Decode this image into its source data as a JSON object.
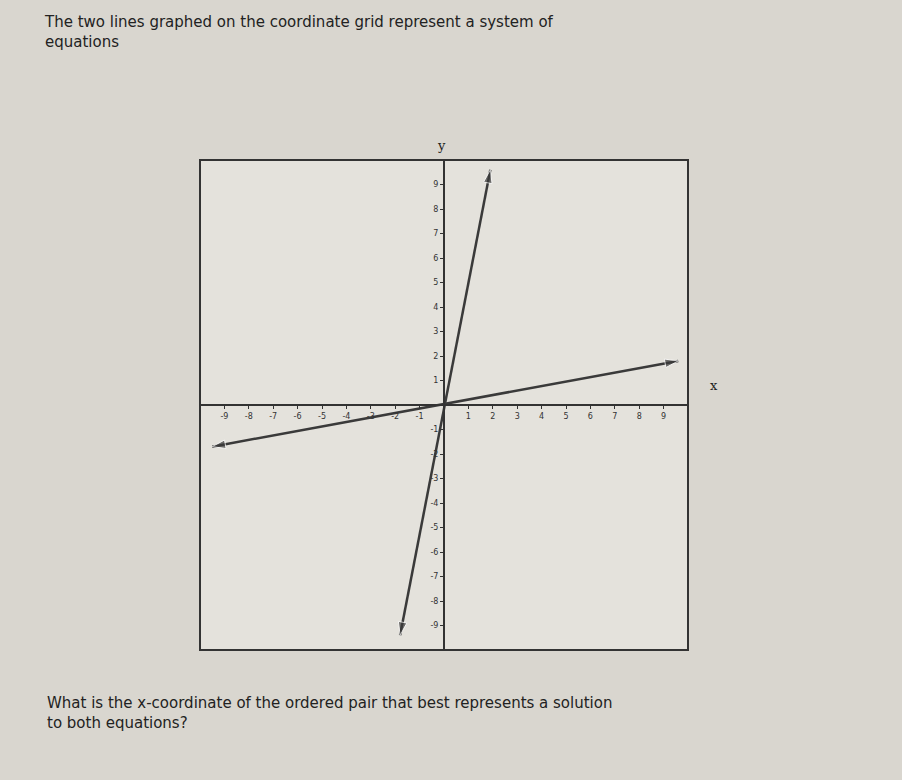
{
  "chart_data": {
    "type": "line",
    "title": "The two lines graphed on the coordinate grid represent a system of equations",
    "annotations": [
      {
        "text": "What is the x-coordinate of the ordered pair that best represents a solution to both equations?"
      }
    ],
    "x_label": "x",
    "y_label": "y",
    "series": [
      {
        "x": [
          -1.8,
          1.9
        ],
        "values": [
          -9.4,
          9.6
        ],
        "color": "#3a3a3a",
        "marker": "arrow"
      },
      {
        "x": [
          -9.5,
          9.6
        ],
        "values": [
          -1.7,
          1.8
        ],
        "color": "#3a3a3a",
        "marker": "arrow"
      }
    ],
    "xlim": [
      -10,
      10
    ],
    "ylim": [
      -10,
      10
    ],
    "xticks": [
      -9,
      -8,
      -7,
      -6,
      -5,
      -4,
      -3,
      -2,
      -1,
      1,
      2,
      3,
      4,
      5,
      6,
      7,
      8,
      9
    ],
    "yticks": [
      -9,
      -8,
      -7,
      -6,
      -5,
      -4,
      -3,
      -2,
      -1,
      1,
      2,
      3,
      4,
      5,
      6,
      7,
      8,
      9
    ],
    "grid": false
  }
}
